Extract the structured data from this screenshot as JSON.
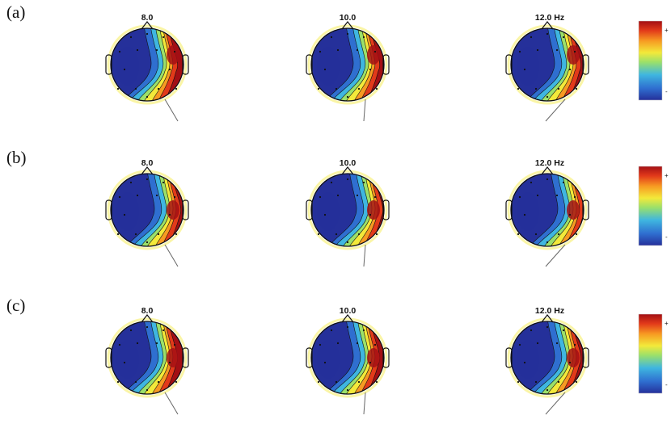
{
  "panels": [
    {
      "label": "(a)",
      "frequencies": [
        "8.0",
        "10.0",
        "12.0 Hz"
      ]
    },
    {
      "label": "(b)",
      "frequencies": [
        "8.0",
        "10.0",
        "12.0 Hz"
      ]
    },
    {
      "label": "(c)",
      "frequencies": [
        "8.0",
        "10.0",
        "12.0 Hz"
      ]
    }
  ],
  "colorbar": {
    "max_label": "+",
    "min_label": "-"
  },
  "colormap": [
    "#25309a",
    "#2f6fd0",
    "#3fb6e0",
    "#9be06a",
    "#f3e93a",
    "#f79a22",
    "#e23a1a",
    "#a30f14"
  ]
}
